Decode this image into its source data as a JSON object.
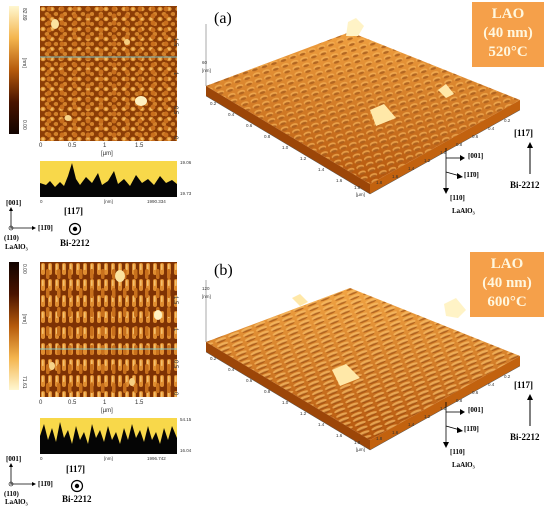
{
  "panel_a": {
    "label": "(a)",
    "badge": [
      "LAO",
      "(40 nm)",
      "520°C"
    ],
    "colorbar_top": "82.89",
    "colorbar_bottom": "0.00",
    "colorbar_unit": "[nm]",
    "y_ticks": [
      "1.5",
      "1",
      "0.5",
      "0"
    ],
    "x_ticks": [
      "0",
      "0.5",
      "1",
      "1.5"
    ],
    "x_unit": "[µm]",
    "profile_right_top": "19.06",
    "profile_right_bottom": "19.73",
    "profile_x_left": "0",
    "profile_x_mid": "[nm]",
    "profile_x_right": "1990.334",
    "view3d_z_unit": "[nm]",
    "view3d_z_val": "60",
    "view3d_x_ticks": [
      "0.2",
      "0.4",
      "0.6",
      "0.8",
      "1.0",
      "1.2",
      "1.4",
      "1.6",
      "1.8"
    ],
    "view3d_y_ticks": [
      "0.2",
      "0.4",
      "0.6",
      "0.8",
      "1.0",
      "1.2",
      "1.4",
      "1.6",
      "1.8"
    ],
    "view3d_unit": "[µm]",
    "dir_001": "[001]",
    "dir_110": "[110]",
    "dir_1b10": "[11̄0]",
    "substrate": "LaAlO₃",
    "dir_117": "[117]",
    "film": "Bi-2212",
    "left_dir_001": "[001]",
    "left_dir_110": "(110)",
    "left_dir_1b10": "[11̄0]",
    "left_substrate": "LaAlO₃",
    "left_dir_117": "[117]",
    "left_film": "Bi-2212"
  },
  "panel_b": {
    "label": "(b)",
    "badge": [
      "LAO",
      "(40 nm)",
      "600°C"
    ],
    "colorbar_top": "0.00",
    "colorbar_bottom": "71.61",
    "colorbar_unit": "[nm]",
    "y_ticks": [
      "1.5",
      "1",
      "0.5",
      "0"
    ],
    "x_ticks": [
      "0",
      "0.5",
      "1",
      "1.5"
    ],
    "x_unit": "[µm]",
    "profile_right_top": "54.15",
    "profile_right_bottom": "16.04",
    "profile_x_left": "0",
    "profile_x_mid": "[nm]",
    "profile_x_right": "1996.742",
    "view3d_z_unit": "[nm]",
    "view3d_z_val": "120",
    "view3d_x_ticks": [
      "0.2",
      "0.4",
      "0.6",
      "0.8",
      "1.0",
      "1.2",
      "1.4",
      "1.6",
      "1.8"
    ],
    "view3d_y_ticks": [
      "0.2",
      "0.4",
      "0.6",
      "0.8",
      "1.0",
      "1.2",
      "1.4",
      "1.6",
      "1.8"
    ],
    "view3d_unit": "[µm]",
    "dir_001": "[001]",
    "dir_110": "[110]",
    "dir_1b10": "[11̄0]",
    "substrate": "LaAlO₃",
    "dir_117": "[117]",
    "film": "Bi-2212",
    "left_dir_001": "[001]",
    "left_dir_110": "(110)",
    "left_dir_1b10": "[11̄0]",
    "left_substrate": "LaAlO₃",
    "left_dir_117": "[117]",
    "left_film": "Bi-2212"
  },
  "colors": {
    "afm_dark": "#5a1f00",
    "afm_mid": "#c2600f",
    "afm_light": "#f1b25a",
    "afm_peak": "#fff4c7",
    "badge_bg": "#f5a04a",
    "badge_text": "#fff7df"
  }
}
